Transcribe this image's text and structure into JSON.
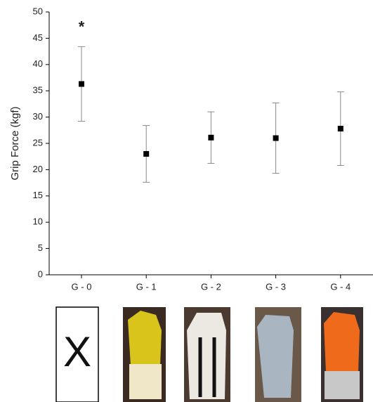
{
  "chart_data": {
    "type": "errorbar",
    "y_label": "Grip Force (kgf)",
    "categories": [
      "G - 0",
      "G - 1",
      "G - 2",
      "G - 3",
      "G - 4"
    ],
    "values": [
      36.3,
      23.0,
      26.1,
      26.0,
      27.8
    ],
    "errors": [
      7.1,
      5.4,
      4.9,
      6.7,
      7.0
    ],
    "color": "#000000",
    "error_color": "#888888",
    "ylim": [
      0,
      50
    ],
    "yticks": [
      0,
      5,
      10,
      15,
      20,
      25,
      30,
      35,
      40,
      45,
      50
    ],
    "annotations": [
      {
        "text": "*",
        "category": 0,
        "y": 47.5
      }
    ]
  },
  "image_strip": {
    "empty_label": "X"
  }
}
